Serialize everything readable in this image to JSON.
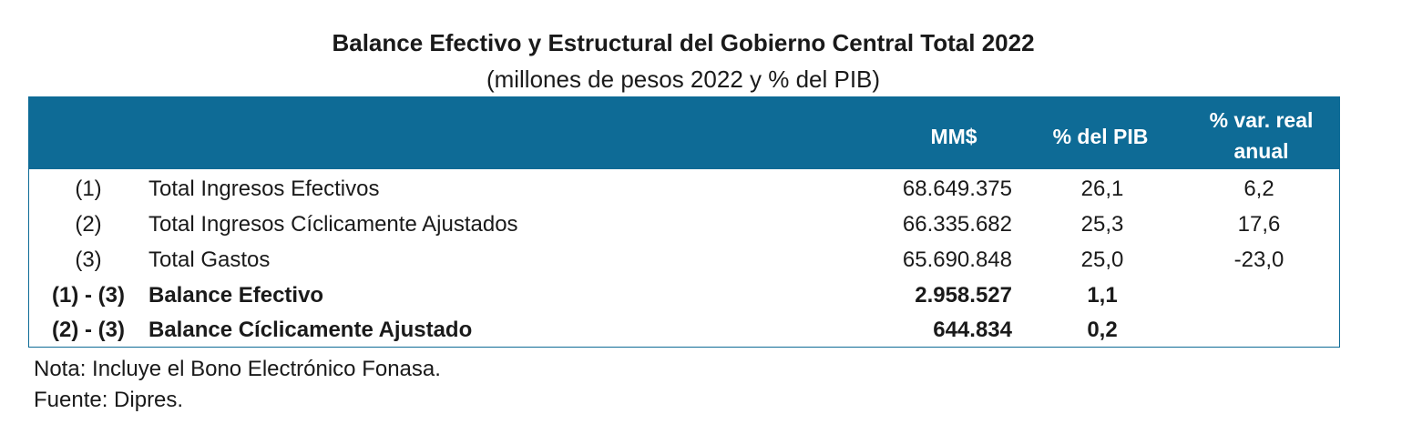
{
  "title": "Balance Efectivo y Estructural del Gobierno Central Total 2022",
  "subtitle": "(millones de pesos 2022 y % del PIB)",
  "colors": {
    "header_background": "#0e6b96",
    "header_text": "#ffffff",
    "border": "#0e6b96"
  },
  "table": {
    "headers": {
      "mm": "MM$",
      "pib": "% del PIB",
      "var": "% var. real anual"
    },
    "rows": [
      {
        "id": "(1)",
        "label": "Total Ingresos Efectivos",
        "mm": "68.649.375",
        "pib": "26,1",
        "var": "6,2",
        "bold": false
      },
      {
        "id": "(2)",
        "label": "Total Ingresos Cíclicamente Ajustados",
        "mm": "66.335.682",
        "pib": "25,3",
        "var": "17,6",
        "bold": false
      },
      {
        "id": "(3)",
        "label": "Total Gastos",
        "mm": "65.690.848",
        "pib": "25,0",
        "var": "-23,0",
        "bold": false
      },
      {
        "id": "(1) - (3)",
        "label": "Balance Efectivo",
        "mm": "2.958.527",
        "pib": "1,1",
        "var": "",
        "bold": true
      },
      {
        "id": "(2) - (3)",
        "label": "Balance Cíclicamente Ajustado",
        "mm": "644.834",
        "pib": "0,2",
        "var": "",
        "bold": true
      }
    ]
  },
  "notes": {
    "nota": "Nota: Incluye el Bono Electrónico Fonasa.",
    "fuente": "Fuente: Dipres."
  }
}
